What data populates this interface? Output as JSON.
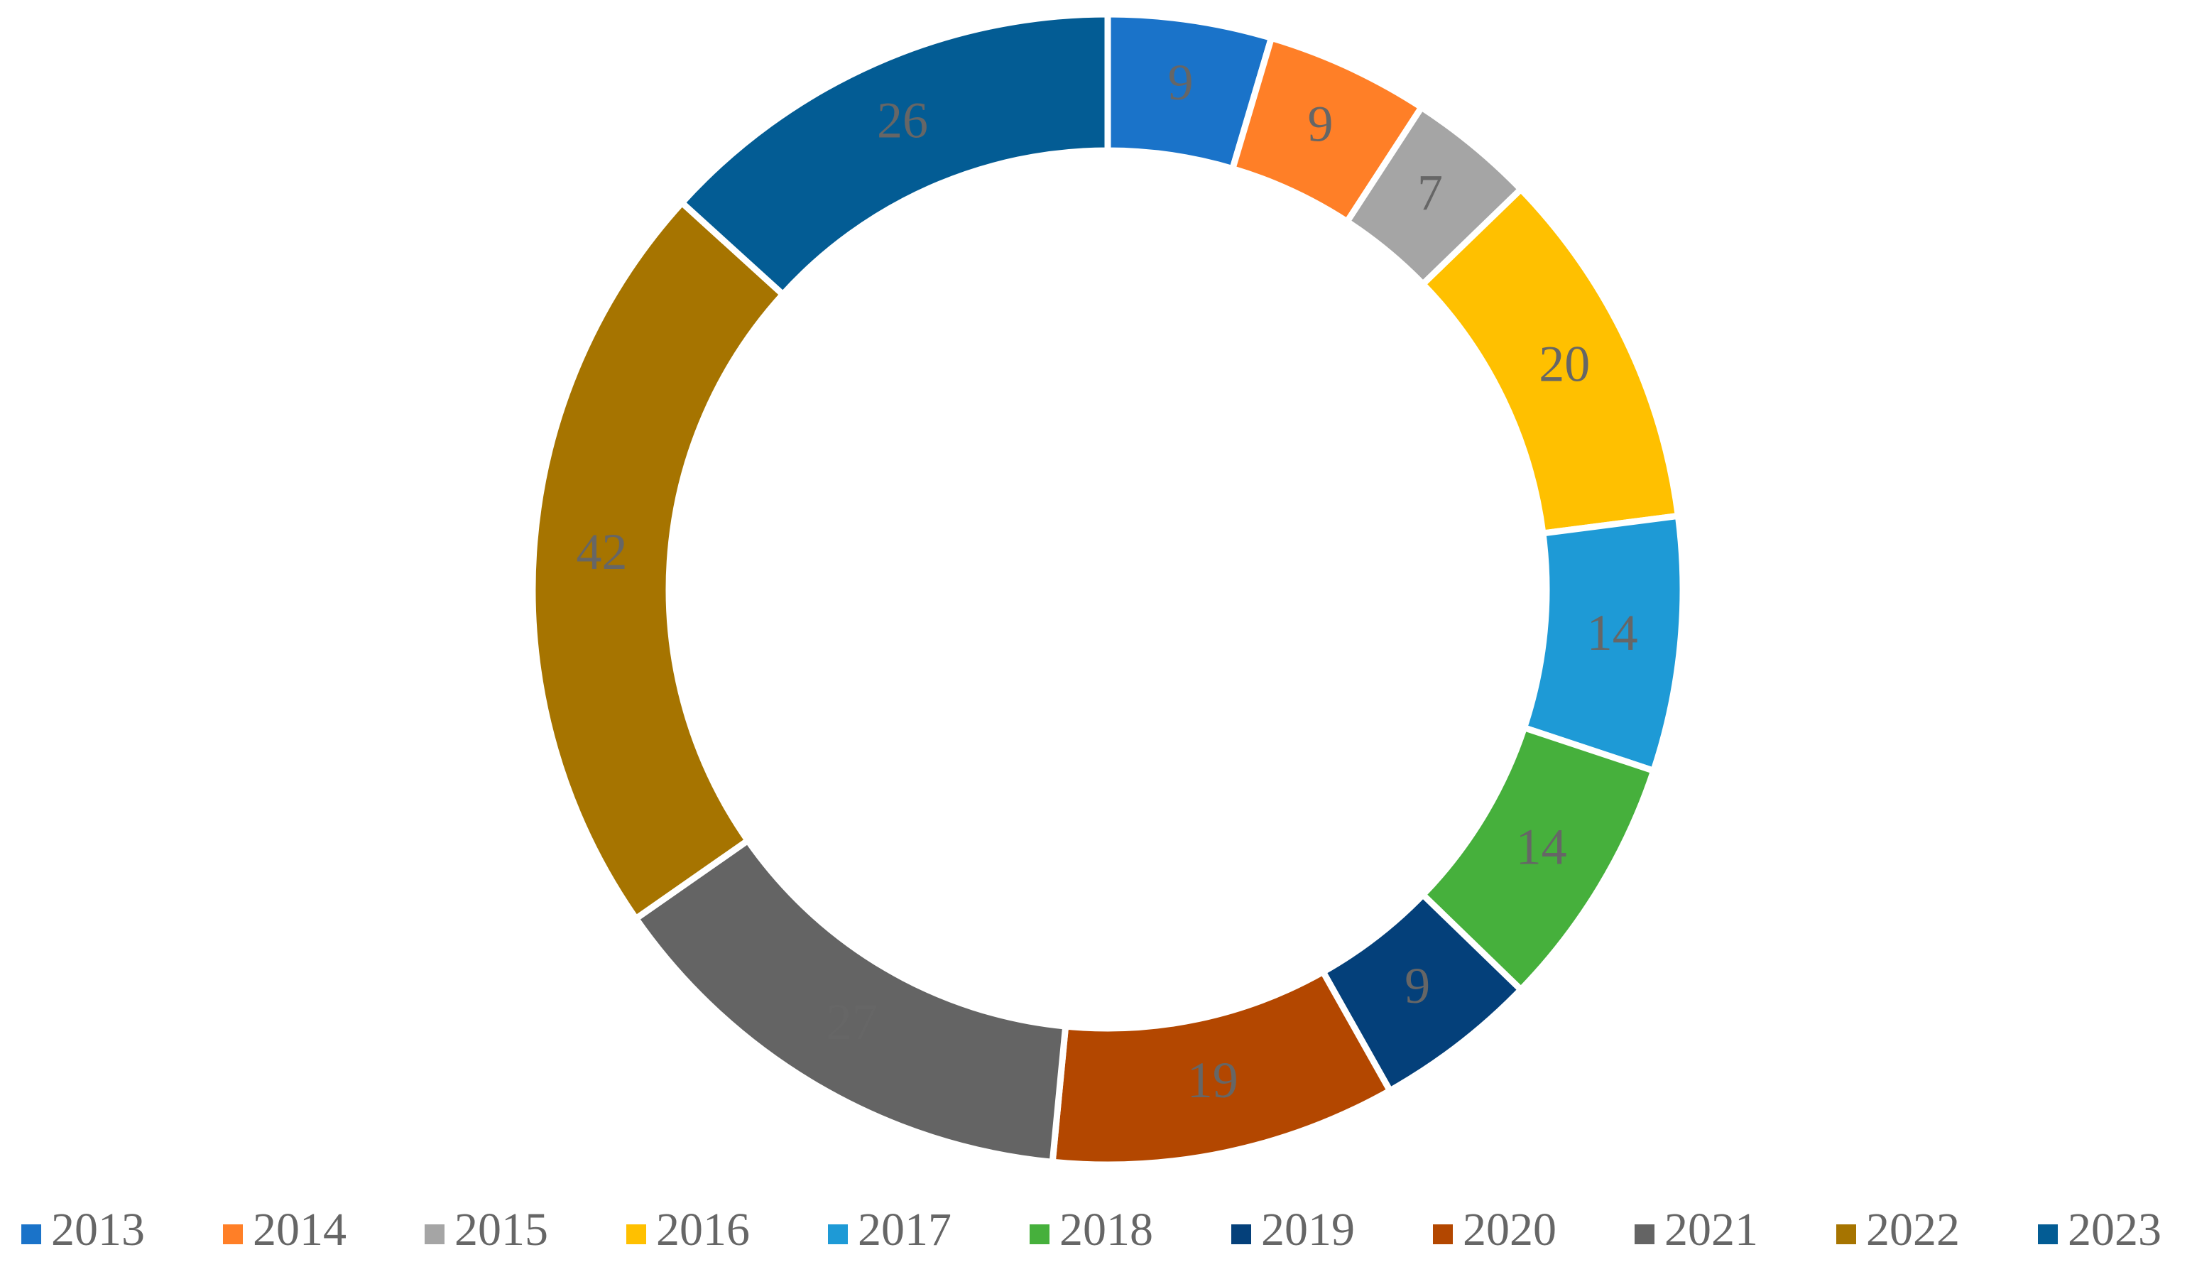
{
  "chart_data": {
    "type": "donut",
    "categories": [
      "2013",
      "2014",
      "2015",
      "2016",
      "2017",
      "2018",
      "2019",
      "2020",
      "2021",
      "2022",
      "2023"
    ],
    "values": [
      9,
      9,
      7,
      20,
      14,
      14,
      9,
      19,
      27,
      42,
      26
    ],
    "colors": [
      "#1a73c9",
      "#ff7f27",
      "#a5a5a5",
      "#ffc000",
      "#1e9ad6",
      "#46b03c",
      "#04407a",
      "#b34700",
      "#646464",
      "#a67400",
      "#035c94"
    ],
    "legend": "bottom"
  }
}
